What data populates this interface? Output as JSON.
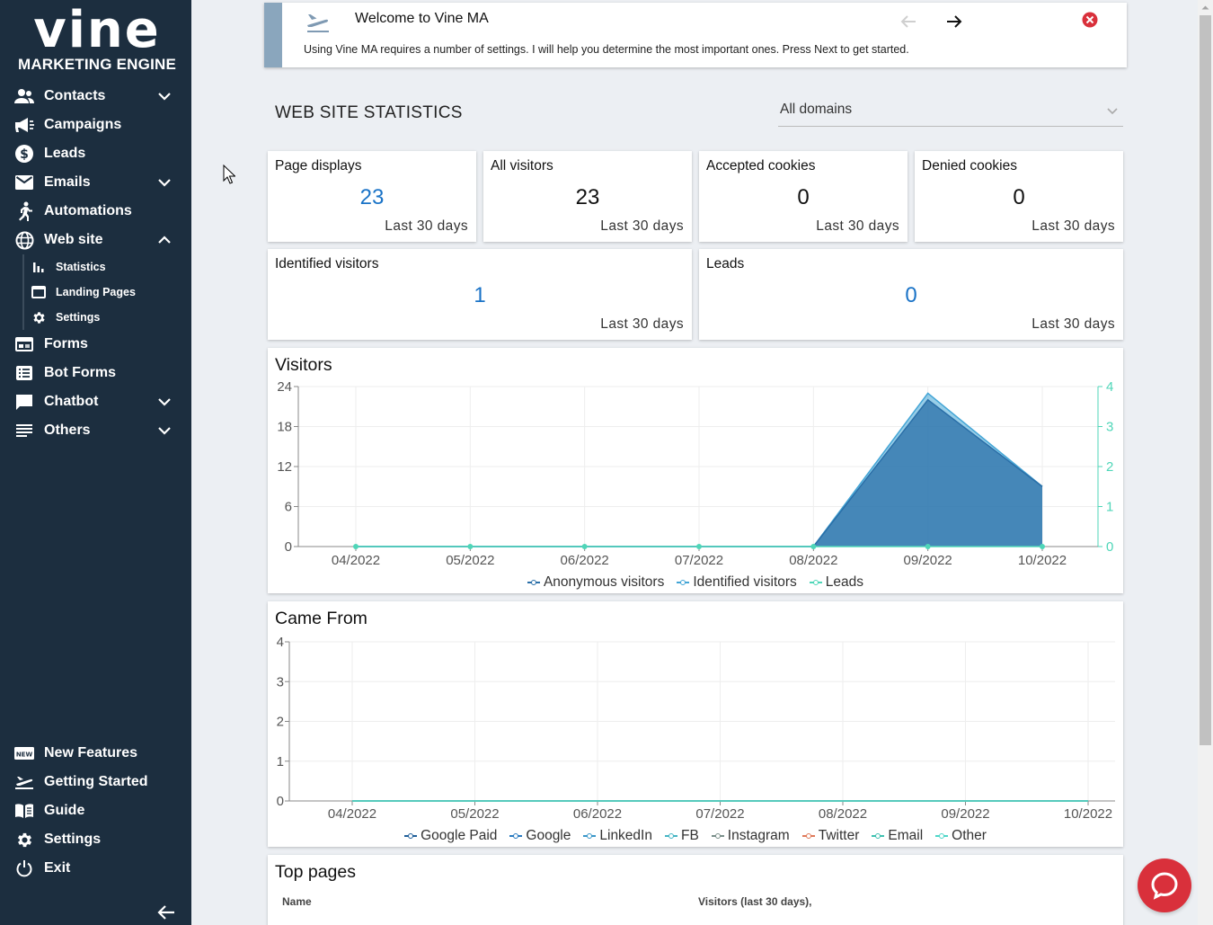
{
  "brand": {
    "logo": "vine",
    "subtitle": "MARKETING ENGINE"
  },
  "sidebar": {
    "items": [
      {
        "label": "Contacts",
        "icon": "contacts-icon",
        "expand": "down"
      },
      {
        "label": "Campaigns",
        "icon": "megaphone-icon"
      },
      {
        "label": "Leads",
        "icon": "dollar-icon"
      },
      {
        "label": "Emails",
        "icon": "mail-icon",
        "expand": "down"
      },
      {
        "label": "Automations",
        "icon": "runner-icon"
      },
      {
        "label": "Web site",
        "icon": "globe-icon",
        "expand": "up"
      }
    ],
    "website_sub": [
      {
        "label": "Statistics",
        "icon": "bar-chart-icon"
      },
      {
        "label": "Landing Pages",
        "icon": "browser-window-icon"
      },
      {
        "label": "Settings",
        "icon": "gear-icon"
      }
    ],
    "items2": [
      {
        "label": "Forms",
        "icon": "form-icon"
      },
      {
        "label": "Bot Forms",
        "icon": "list-icon"
      },
      {
        "label": "Chatbot",
        "icon": "chat-icon",
        "expand": "down"
      },
      {
        "label": "Others",
        "icon": "lines-icon",
        "expand": "down"
      }
    ],
    "bottom": [
      {
        "label": "New Features",
        "icon": "new-badge-icon"
      },
      {
        "label": "Getting Started",
        "icon": "plane-icon"
      },
      {
        "label": "Guide",
        "icon": "book-icon"
      },
      {
        "label": "Settings",
        "icon": "gear-icon"
      },
      {
        "label": "Exit",
        "icon": "power-icon"
      }
    ]
  },
  "welcome": {
    "title": "Welcome to Vine MA",
    "text": "Using Vine MA requires a number of settings. I will help you determine the most important ones. Press Next to get started."
  },
  "stats": {
    "title": "WEB SITE STATISTICS",
    "domain": "All domains",
    "cards": [
      {
        "title": "Page displays",
        "value": "23",
        "footer": "Last 30 days",
        "color": "#1a73c7"
      },
      {
        "title": "All visitors",
        "value": "23",
        "footer": "Last 30 days",
        "color": "#111111"
      },
      {
        "title": "Accepted cookies",
        "value": "0",
        "footer": "Last 30 days",
        "color": "#111111"
      },
      {
        "title": "Denied cookies",
        "value": "0",
        "footer": "Last 30 days",
        "color": "#111111"
      },
      {
        "title": "Identified visitors",
        "value": "1",
        "footer": "Last 30 days",
        "color": "#1a73c7"
      },
      {
        "title": "Leads",
        "value": "0",
        "footer": "Last 30 days",
        "color": "#1a73c7"
      }
    ]
  },
  "chart_data": [
    {
      "type": "area",
      "title": "Visitors",
      "categories": [
        "04/2022",
        "05/2022",
        "06/2022",
        "07/2022",
        "08/2022",
        "09/2022",
        "10/2022"
      ],
      "y_left": {
        "ticks": [
          "0",
          "6",
          "12",
          "18",
          "24"
        ],
        "range": [
          0,
          24
        ]
      },
      "y_right": {
        "ticks": [
          "0",
          "1",
          "2",
          "3",
          "4"
        ],
        "range": [
          0,
          4
        ]
      },
      "series": [
        {
          "name": "Anonymous visitors",
          "axis": "left",
          "values": [
            0,
            0,
            0,
            0,
            0,
            22,
            9
          ],
          "color": "#2a6fa8"
        },
        {
          "name": "Identified visitors",
          "axis": "left",
          "values": [
            0,
            0,
            0,
            0,
            0,
            23,
            9
          ],
          "color": "#43a5d6"
        },
        {
          "name": "Leads",
          "axis": "right",
          "values": [
            0,
            0,
            0,
            0,
            0,
            0,
            0
          ],
          "color": "#4fd6b8"
        }
      ],
      "grid": true,
      "legend": "bottom"
    },
    {
      "type": "line",
      "title": "Came From",
      "categories": [
        "04/2022",
        "05/2022",
        "06/2022",
        "07/2022",
        "08/2022",
        "09/2022",
        "10/2022"
      ],
      "y": {
        "ticks": [
          "0",
          "1",
          "2",
          "3",
          "4"
        ],
        "range": [
          0,
          4
        ]
      },
      "series": [
        {
          "name": "Google Paid",
          "values": [
            0,
            0,
            0,
            0,
            0,
            0,
            0
          ],
          "color": "#1f5f99"
        },
        {
          "name": "Google",
          "values": [
            0,
            0,
            0,
            0,
            0,
            0,
            0
          ],
          "color": "#2a7bc0"
        },
        {
          "name": "LinkedIn",
          "values": [
            0,
            0,
            0,
            0,
            0,
            0,
            0
          ],
          "color": "#3a97c9"
        },
        {
          "name": "FB",
          "values": [
            0,
            0,
            0,
            0,
            0,
            0,
            0
          ],
          "color": "#45b5c4"
        },
        {
          "name": "Instagram",
          "values": [
            0,
            0,
            0,
            0,
            0,
            0,
            0
          ],
          "color": "#7a8f8a"
        },
        {
          "name": "Twitter",
          "values": [
            0,
            0,
            0,
            0,
            0,
            0,
            0
          ],
          "color": "#e07a5a"
        },
        {
          "name": "Email",
          "values": [
            0,
            0,
            0,
            0,
            0,
            0,
            0
          ],
          "color": "#3fc0b0"
        },
        {
          "name": "Other",
          "values": [
            0,
            0,
            0,
            0,
            0,
            0,
            0
          ],
          "color": "#4fd6c8"
        }
      ],
      "grid": true,
      "legend": "bottom"
    }
  ],
  "top_pages": {
    "title": "Top pages",
    "columns": [
      "Name",
      "Visitors (last 30 days),"
    ]
  }
}
